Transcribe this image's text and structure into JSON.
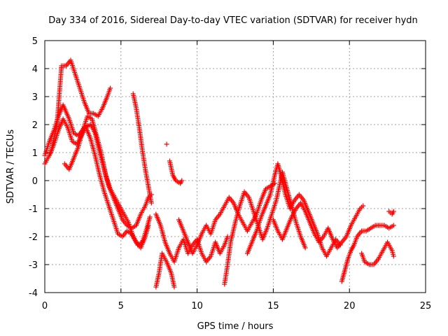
{
  "chart_data": {
    "type": "scatter",
    "title": "Day 334 of 2016, Sidereal Day-to-day VTEC variation (SDTVAR) for receiver hydn",
    "xlabel": "GPS time / hours",
    "ylabel": "SDTVAR / TECUs",
    "xlim": [
      0,
      25
    ],
    "ylim": [
      -4,
      5
    ],
    "xticks": [
      0,
      5,
      10,
      15,
      20,
      25
    ],
    "yticks": [
      -4,
      -3,
      -2,
      -1,
      0,
      1,
      2,
      3,
      4,
      5
    ],
    "grid": true,
    "marker": "+",
    "color": "#ff0000",
    "series": [
      {
        "name": "trace-1",
        "points": [
          [
            0.0,
            0.9
          ],
          [
            0.3,
            1.4
          ],
          [
            0.6,
            1.8
          ],
          [
            0.9,
            2.3
          ],
          [
            1.2,
            2.7
          ],
          [
            1.6,
            2.2
          ],
          [
            1.9,
            1.7
          ],
          [
            2.2,
            1.6
          ],
          [
            2.6,
            1.9
          ],
          [
            3.0,
            2.0
          ],
          [
            3.3,
            1.7
          ],
          [
            3.6,
            1.0
          ],
          [
            3.9,
            0.4
          ],
          [
            4.2,
            -0.2
          ],
          [
            4.5,
            -0.6
          ],
          [
            4.8,
            -1.0
          ],
          [
            5.1,
            -1.4
          ],
          [
            5.4,
            -1.6
          ],
          [
            5.7,
            -1.7
          ],
          [
            6.0,
            -1.6
          ],
          [
            6.3,
            -1.2
          ],
          [
            6.6,
            -0.9
          ],
          [
            6.8,
            -0.6
          ],
          [
            7.0,
            -0.5
          ]
        ]
      },
      {
        "name": "trace-2",
        "points": [
          [
            0.0,
            0.6
          ],
          [
            0.3,
            0.9
          ],
          [
            0.6,
            1.3
          ],
          [
            0.9,
            1.8
          ],
          [
            1.2,
            2.2
          ],
          [
            1.5,
            1.9
          ],
          [
            1.8,
            1.4
          ],
          [
            2.1,
            1.3
          ],
          [
            2.4,
            1.6
          ],
          [
            2.7,
            1.9
          ],
          [
            3.0,
            1.5
          ],
          [
            3.3,
            0.9
          ],
          [
            3.6,
            0.2
          ],
          [
            3.9,
            -0.4
          ],
          [
            4.2,
            -0.9
          ],
          [
            4.5,
            -1.4
          ],
          [
            4.8,
            -1.9
          ],
          [
            5.1,
            -2.0
          ],
          [
            5.4,
            -1.8
          ],
          [
            5.7,
            -1.9
          ],
          [
            6.0,
            -2.2
          ],
          [
            6.3,
            -2.4
          ],
          [
            6.6,
            -2.0
          ],
          [
            6.8,
            -1.6
          ]
        ]
      },
      {
        "name": "trace-3",
        "points": [
          [
            0.4,
            1.0
          ],
          [
            0.6,
            1.5
          ],
          [
            0.8,
            2.0
          ],
          [
            1.1,
            4.1
          ],
          [
            1.4,
            4.1
          ],
          [
            1.7,
            4.3
          ],
          [
            2.0,
            3.8
          ],
          [
            2.3,
            3.3
          ],
          [
            2.6,
            2.8
          ],
          [
            2.9,
            2.4
          ],
          [
            3.2,
            2.4
          ],
          [
            3.5,
            2.3
          ],
          [
            3.8,
            2.6
          ],
          [
            4.1,
            3.0
          ],
          [
            4.3,
            3.3
          ]
        ]
      },
      {
        "name": "trace-4",
        "points": [
          [
            1.3,
            0.6
          ],
          [
            1.6,
            0.4
          ],
          [
            1.9,
            0.8
          ],
          [
            2.2,
            1.2
          ],
          [
            2.5,
            1.8
          ],
          [
            2.8,
            2.3
          ],
          [
            3.1,
            2.2
          ],
          [
            3.4,
            1.6
          ],
          [
            3.7,
            1.0
          ],
          [
            4.0,
            0.2
          ],
          [
            4.3,
            -0.3
          ],
          [
            4.6,
            -0.6
          ],
          [
            4.9,
            -0.9
          ],
          [
            5.2,
            -1.2
          ],
          [
            5.5,
            -1.5
          ],
          [
            5.8,
            -2.0
          ],
          [
            6.1,
            -2.3
          ],
          [
            6.4,
            -2.2
          ],
          [
            6.7,
            -1.7
          ],
          [
            6.9,
            -1.3
          ]
        ]
      },
      {
        "name": "trace-5",
        "points": [
          [
            5.8,
            3.1
          ],
          [
            6.0,
            2.6
          ],
          [
            6.2,
            1.9
          ],
          [
            6.4,
            1.1
          ],
          [
            6.6,
            0.4
          ],
          [
            6.8,
            -0.2
          ],
          [
            7.0,
            -0.8
          ]
        ]
      },
      {
        "name": "trace-6",
        "points": [
          [
            7.3,
            -3.8
          ],
          [
            7.5,
            -3.3
          ],
          [
            7.7,
            -2.6
          ],
          [
            8.0,
            -2.9
          ],
          [
            8.3,
            -3.3
          ],
          [
            8.5,
            -3.8
          ]
        ]
      },
      {
        "name": "trace-7",
        "points": [
          [
            7.3,
            -1.2
          ],
          [
            7.6,
            -1.6
          ],
          [
            7.9,
            -2.2
          ],
          [
            8.2,
            -2.6
          ],
          [
            8.5,
            -2.9
          ],
          [
            8.8,
            -2.4
          ],
          [
            9.1,
            -2.1
          ],
          [
            9.4,
            -2.6
          ],
          [
            9.7,
            -2.3
          ],
          [
            10.0,
            -2.1
          ],
          [
            10.3,
            -2.6
          ],
          [
            10.6,
            -2.9
          ],
          [
            10.9,
            -2.7
          ],
          [
            11.2,
            -2.2
          ],
          [
            11.5,
            -2.6
          ],
          [
            11.8,
            -2.3
          ],
          [
            12.0,
            -2.0
          ]
        ]
      },
      {
        "name": "trace-8",
        "points": [
          [
            8.2,
            0.7
          ],
          [
            8.4,
            0.2
          ],
          [
            8.6,
            0.0
          ],
          [
            8.9,
            -0.1
          ],
          [
            9.0,
            0.0
          ]
        ]
      },
      {
        "name": "trace-9",
        "points": [
          [
            8.0,
            1.3
          ]
        ]
      },
      {
        "name": "trace-10",
        "points": [
          [
            8.8,
            -1.4
          ],
          [
            9.1,
            -1.8
          ],
          [
            9.4,
            -2.2
          ],
          [
            9.7,
            -2.6
          ],
          [
            10.0,
            -2.3
          ],
          [
            10.3,
            -1.9
          ],
          [
            10.6,
            -1.6
          ],
          [
            10.9,
            -1.9
          ],
          [
            11.2,
            -1.4
          ],
          [
            11.5,
            -1.2
          ],
          [
            11.8,
            -0.9
          ],
          [
            12.1,
            -0.6
          ],
          [
            12.4,
            -0.8
          ],
          [
            12.7,
            -1.2
          ],
          [
            13.0,
            -1.5
          ],
          [
            13.3,
            -1.8
          ],
          [
            13.6,
            -1.5
          ],
          [
            13.9,
            -1.2
          ],
          [
            14.2,
            -0.7
          ],
          [
            14.5,
            -0.3
          ],
          [
            14.8,
            -0.2
          ],
          [
            15.1,
            -0.1
          ]
        ]
      },
      {
        "name": "trace-11",
        "points": [
          [
            11.8,
            -3.7
          ],
          [
            12.0,
            -3.0
          ],
          [
            12.2,
            -2.2
          ],
          [
            12.5,
            -1.5
          ],
          [
            12.8,
            -0.9
          ],
          [
            13.1,
            -0.4
          ],
          [
            13.4,
            -0.6
          ],
          [
            13.7,
            -1.1
          ],
          [
            14.0,
            -1.6
          ],
          [
            14.3,
            -2.1
          ],
          [
            14.6,
            -1.7
          ],
          [
            14.9,
            -1.2
          ],
          [
            15.2,
            -0.7
          ],
          [
            15.4,
            -0.2
          ],
          [
            15.6,
            0.3
          ],
          [
            15.9,
            -0.3
          ],
          [
            16.2,
            -0.9
          ],
          [
            16.5,
            -1.5
          ],
          [
            16.8,
            -2.0
          ],
          [
            17.1,
            -2.4
          ]
        ]
      },
      {
        "name": "trace-12",
        "points": [
          [
            13.3,
            -2.6
          ],
          [
            13.6,
            -2.2
          ],
          [
            13.9,
            -1.8
          ],
          [
            14.2,
            -1.3
          ],
          [
            14.5,
            -0.9
          ],
          [
            14.8,
            -0.5
          ],
          [
            15.1,
            0.2
          ],
          [
            15.3,
            0.6
          ],
          [
            15.5,
            0.2
          ],
          [
            15.8,
            -0.5
          ],
          [
            16.1,
            -1.0
          ],
          [
            16.4,
            -0.7
          ],
          [
            16.7,
            -0.5
          ],
          [
            17.0,
            -0.7
          ],
          [
            17.3,
            -1.1
          ],
          [
            17.6,
            -1.5
          ],
          [
            17.9,
            -1.9
          ],
          [
            18.2,
            -2.4
          ],
          [
            18.5,
            -2.7
          ],
          [
            18.8,
            -2.4
          ],
          [
            19.1,
            -2.1
          ],
          [
            19.4,
            -2.3
          ]
        ]
      },
      {
        "name": "trace-13",
        "points": [
          [
            15.0,
            -1.4
          ],
          [
            15.3,
            -1.8
          ],
          [
            15.6,
            -2.1
          ],
          [
            15.9,
            -1.7
          ],
          [
            16.2,
            -1.3
          ],
          [
            16.5,
            -1.0
          ],
          [
            16.8,
            -0.8
          ],
          [
            17.1,
            -1.1
          ],
          [
            17.4,
            -1.5
          ],
          [
            17.7,
            -1.9
          ],
          [
            18.0,
            -2.2
          ],
          [
            18.3,
            -2.0
          ],
          [
            18.6,
            -1.7
          ],
          [
            18.9,
            -2.1
          ],
          [
            19.2,
            -2.4
          ],
          [
            19.5,
            -2.2
          ],
          [
            19.8,
            -2.0
          ],
          [
            20.1,
            -1.6
          ],
          [
            20.4,
            -1.3
          ],
          [
            20.7,
            -1.0
          ],
          [
            20.9,
            -0.9
          ]
        ]
      },
      {
        "name": "trace-14",
        "points": [
          [
            19.5,
            -3.6
          ],
          [
            19.7,
            -3.2
          ],
          [
            19.9,
            -2.8
          ],
          [
            20.1,
            -2.5
          ],
          [
            20.3,
            -2.3
          ],
          [
            20.5,
            -2.0
          ],
          [
            20.8,
            -1.8
          ],
          [
            21.1,
            -1.8
          ],
          [
            21.4,
            -1.7
          ],
          [
            21.7,
            -1.6
          ],
          [
            22.0,
            -1.6
          ],
          [
            22.3,
            -1.6
          ],
          [
            22.6,
            -1.7
          ],
          [
            22.9,
            -1.6
          ]
        ]
      },
      {
        "name": "trace-15",
        "points": [
          [
            20.8,
            -2.6
          ],
          [
            21.0,
            -2.9
          ],
          [
            21.3,
            -3.0
          ],
          [
            21.6,
            -3.0
          ],
          [
            21.9,
            -2.8
          ],
          [
            22.2,
            -2.5
          ],
          [
            22.5,
            -2.2
          ],
          [
            22.8,
            -2.5
          ],
          [
            22.9,
            -2.7
          ]
        ]
      },
      {
        "name": "trace-16",
        "points": [
          [
            22.6,
            -1.1
          ],
          [
            22.8,
            -1.2
          ],
          [
            22.9,
            -1.1
          ]
        ]
      }
    ]
  }
}
